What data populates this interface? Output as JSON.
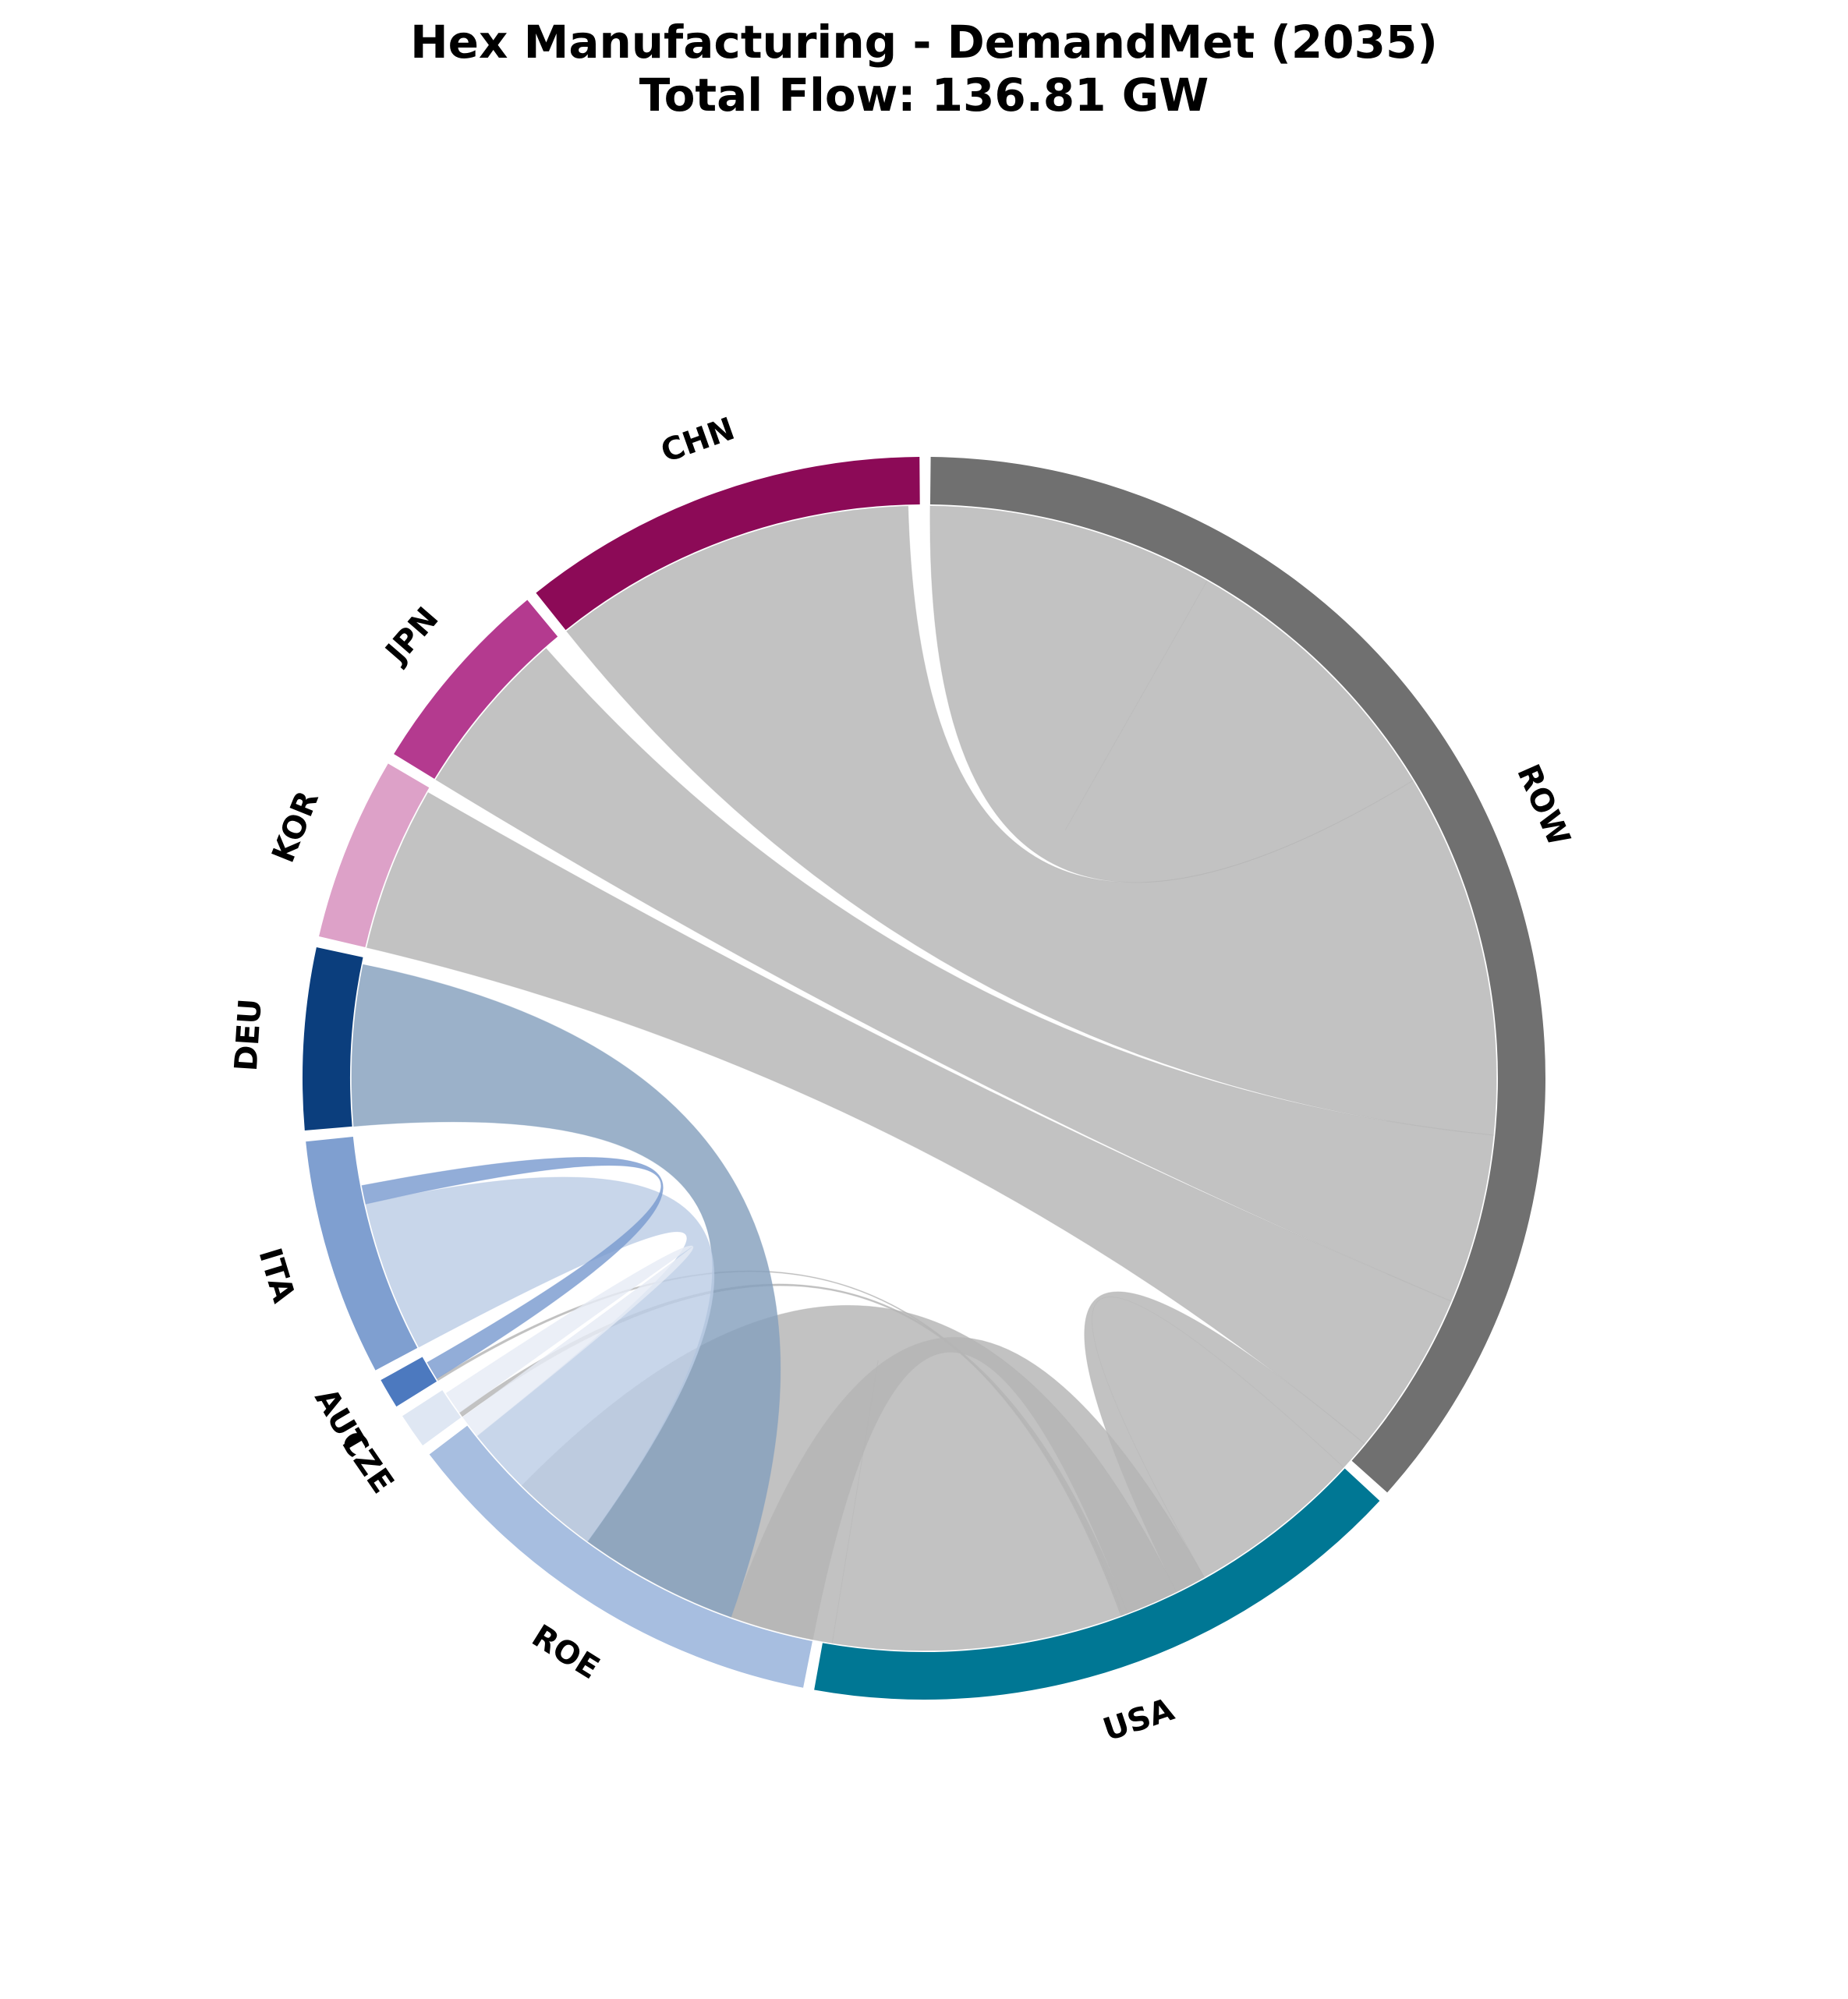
{
  "chart_data": {
    "type": "chord",
    "title": "Hex Manufacturing - DemandMet (2035)",
    "subtitle": "Total Flow: 136.81 GW",
    "unit": "GW",
    "total": 136.81,
    "regions": [
      {
        "code": "ROW",
        "color": "#707070",
        "value": 55.6
      },
      {
        "code": "USA",
        "color": "#007794",
        "value": 24.3
      },
      {
        "code": "ROE",
        "color": "#a7bee0",
        "value": 17.6
      },
      {
        "code": "CZE",
        "color": "#dfe7f3",
        "value": 1.4
      },
      {
        "code": "AUT",
        "color": "#4c79bf",
        "value": 1.2
      },
      {
        "code": "ITA",
        "color": "#7f9fd0",
        "value": 9.4
      },
      {
        "code": "DEU",
        "color": "#0b3e7d",
        "value": 7.2
      },
      {
        "code": "KOR",
        "color": "#dda1c8",
        "value": 7.3
      },
      {
        "code": "JPN",
        "color": "#b43a8f",
        "value": 8.0
      },
      {
        "code": "CHN",
        "color": "#8c0a57",
        "value": 16.2
      }
    ],
    "flows": [
      {
        "from": "ROW",
        "to": "ROW",
        "value": 12.3,
        "color": "#b4b4b4"
      },
      {
        "from": "ROW",
        "to": "CHN",
        "value": 15.7,
        "color": "#b4b4b4"
      },
      {
        "from": "ROW",
        "to": "JPN",
        "value": 7.3,
        "color": "#b4b4b4"
      },
      {
        "from": "ROW",
        "to": "KOR",
        "value": 7.1,
        "color": "#b4b4b4"
      },
      {
        "from": "ROW",
        "to": "USA",
        "value": 8.9,
        "color": "#b4b4b4"
      },
      {
        "from": "ROW",
        "to": "ROE",
        "value": 3.6,
        "color": "#b4b4b4"
      },
      {
        "from": "ROW",
        "to": "CZE",
        "value": 0.2,
        "color": "#b4b4b4"
      },
      {
        "from": "ROW",
        "to": "AUT",
        "value": 0.1,
        "color": "#b4b4b4"
      },
      {
        "from": "USA",
        "to": "USA",
        "value": 15.0,
        "color": "#b4b4b4"
      },
      {
        "from": "ROE",
        "to": "DEU",
        "value": 6.9,
        "color": "#85a0bd"
      },
      {
        "from": "ROE",
        "to": "ITA",
        "value": 6.5,
        "color": "#bccde5"
      },
      {
        "from": "ROE",
        "to": "CZE",
        "value": 1.0,
        "color": "#e6ecf5"
      },
      {
        "from": "ITA",
        "to": "AUT",
        "value": 0.8,
        "color": "#7a9bd0"
      }
    ]
  }
}
